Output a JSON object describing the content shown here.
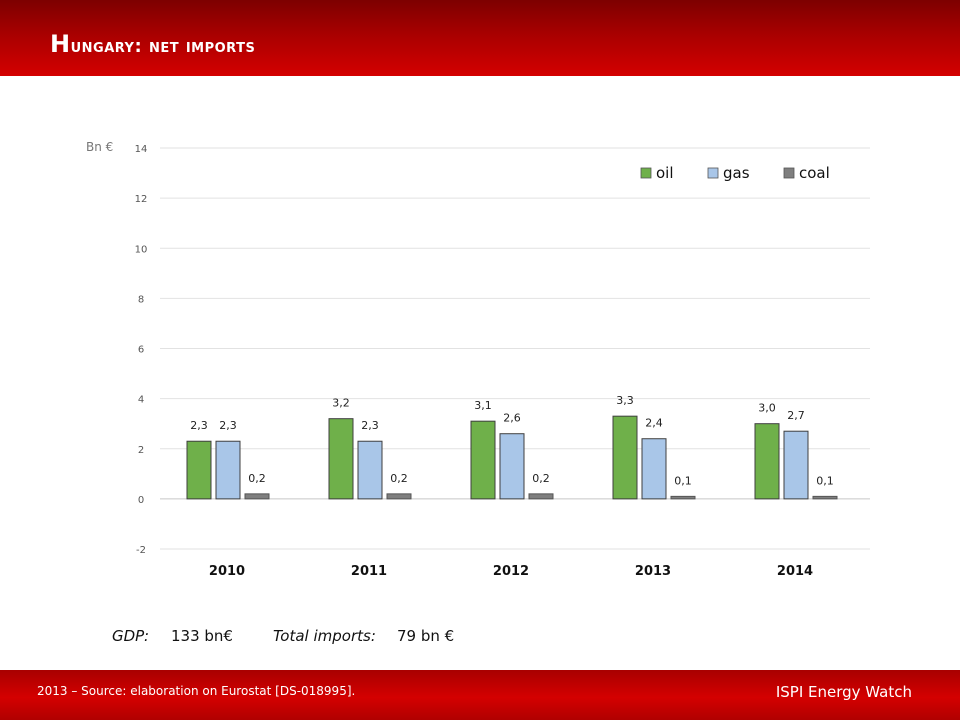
{
  "header": {
    "title_first": "H",
    "title_rest": "ungary: net imports"
  },
  "footer": {
    "source": "2013 – Source: elaboration on Eurostat [DS-018995].",
    "brand": "ISPI Energy Watch"
  },
  "stats": {
    "gdp_label": "GDP:",
    "gdp_value": "133 bn€",
    "imports_label": "Total imports:",
    "imports_value": "79 bn €"
  },
  "colors": {
    "oil": "#6fb04a",
    "gas": "#a9c6e8",
    "coal": "#7f7f7f",
    "header": "#c00000"
  },
  "chart_data": {
    "type": "bar",
    "ylabel": "Bn €",
    "ylim": [
      -2,
      14
    ],
    "yticks": [
      "14",
      "12",
      "10",
      "8",
      "6",
      "4",
      "2",
      "0",
      "-2"
    ],
    "categories": [
      "2010",
      "2011",
      "2012",
      "2013",
      "2014"
    ],
    "legend_position": "top-right",
    "series": [
      {
        "name": "oil",
        "values": [
          2.3,
          3.2,
          3.1,
          3.3,
          3.0
        ],
        "labels": [
          "2,3",
          "3,2",
          "3,1",
          "3,3",
          "3,0"
        ]
      },
      {
        "name": "gas",
        "values": [
          2.3,
          2.3,
          2.6,
          2.4,
          2.7
        ],
        "labels": [
          "2,3",
          "2,3",
          "2,6",
          "2,4",
          "2,7"
        ]
      },
      {
        "name": "coal",
        "values": [
          0.2,
          0.2,
          0.2,
          0.1,
          0.1
        ],
        "labels": [
          "0,2",
          "0,2",
          "0,2",
          "0,1",
          "0,1"
        ]
      }
    ]
  }
}
